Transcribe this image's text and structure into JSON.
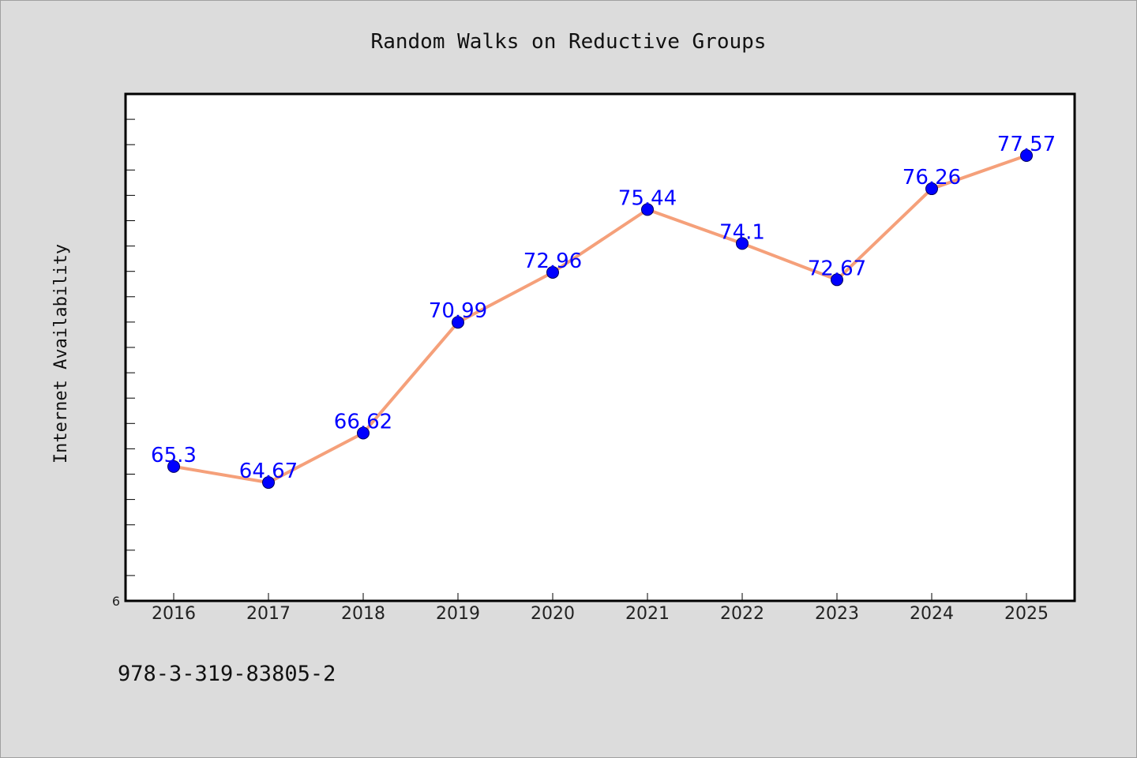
{
  "footer": {
    "isbn": "978-3-319-83805-2"
  },
  "colors": {
    "background": "#dcdcdc",
    "plot_background": "#ffffff",
    "line": "#f5a07a",
    "marker": "#0000ff",
    "label": "#0000ff"
  },
  "chart_data": {
    "type": "line",
    "title": "Random Walks on Reductive Groups",
    "xlabel": "",
    "ylabel": "Internet Availability",
    "x": [
      "2016",
      "2017",
      "2018",
      "2019",
      "2020",
      "2021",
      "2022",
      "2023",
      "2024",
      "2025"
    ],
    "series": [
      {
        "values": [
          65.3,
          64.67,
          66.62,
          70.99,
          72.96,
          75.44,
          74.1,
          72.67,
          76.26,
          77.57
        ]
      }
    ],
    "ylim": [
      60,
      80
    ],
    "ytick_labels": [
      {
        "value": 60,
        "label": "6"
      }
    ],
    "grid": false,
    "legend": "none",
    "data_labels": true
  }
}
